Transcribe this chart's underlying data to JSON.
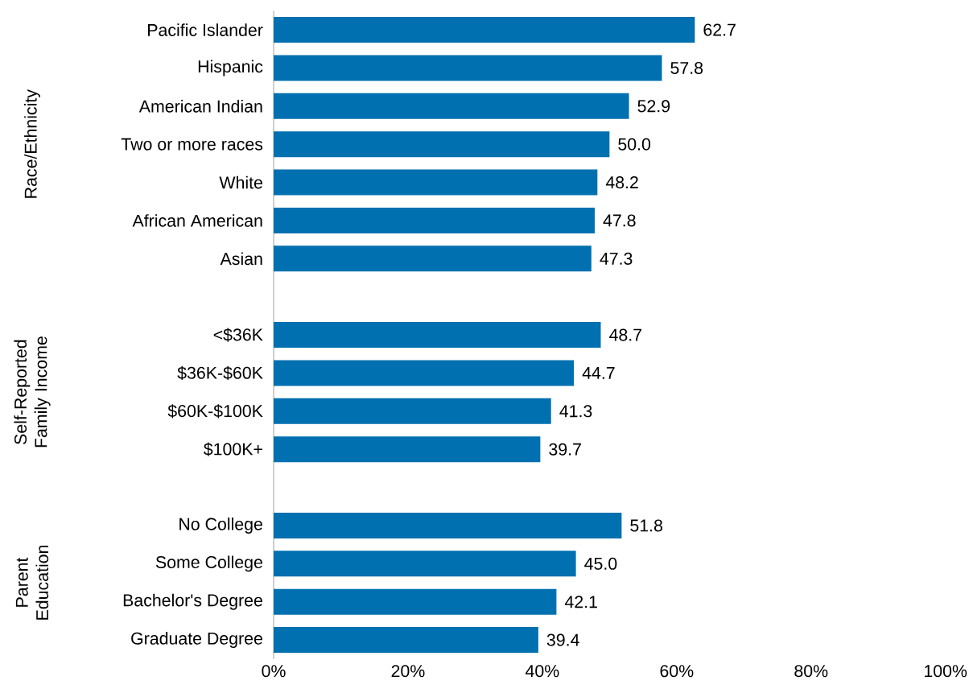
{
  "chart_data": {
    "type": "bar",
    "orientation": "horizontal",
    "categories": [
      "Pacific Islander",
      "Hispanic",
      "American Indian",
      "Two or more races",
      "White",
      "African American",
      "Asian",
      null,
      "<$36K",
      "$36K-$60K",
      "$60K-$100K",
      "$100K+",
      null,
      "No College",
      "Some College",
      "Bachelor's Degree",
      "Graduate Degree"
    ],
    "values": [
      62.7,
      57.8,
      52.9,
      50.0,
      48.2,
      47.8,
      47.3,
      null,
      48.7,
      44.7,
      41.3,
      39.7,
      null,
      51.8,
      45.0,
      42.1,
      39.4
    ],
    "value_labels": [
      "62.7",
      "57.8",
      "52.9",
      "50.0",
      "48.2",
      "47.8",
      "47.3",
      null,
      "48.7",
      "44.7",
      "41.3",
      "39.7",
      null,
      "51.8",
      "45.0",
      "42.1",
      "39.4"
    ],
    "color": "#0070b0",
    "xlim": [
      0,
      100
    ],
    "xticks": [
      {
        "value": 0,
        "label": "0%"
      },
      {
        "value": 20,
        "label": "20%"
      },
      {
        "value": 40,
        "label": "40%"
      },
      {
        "value": 60,
        "label": "60%"
      },
      {
        "value": 80,
        "label": "80%"
      },
      {
        "value": 100,
        "label": "100%"
      }
    ],
    "annotations": [
      "Race/Ethnicity",
      "Self-Reported Family Income",
      "Parent Education"
    ],
    "grid": false
  }
}
